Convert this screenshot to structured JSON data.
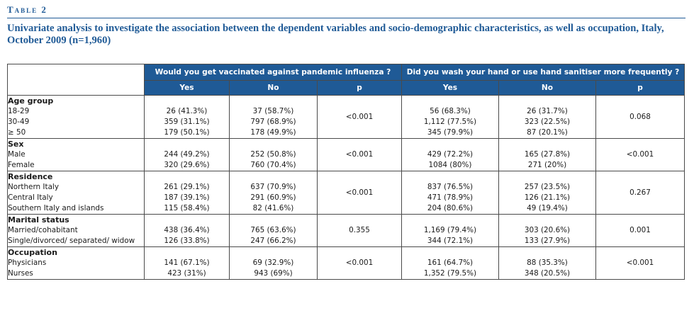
{
  "table_label": "Table 2",
  "caption": "Univariate analysis to investigate the association between the dependent variables and socio-demographic characteristics, as well as occupation, Italy, October 2009 (n=1,960)",
  "header": {
    "group1": "Would you get vaccinated against pandemic influenza ?",
    "group2": "Did you wash your hand or use hand sanitiser more frequently ?",
    "yes": "Yes",
    "no": "No",
    "p": "p"
  },
  "sections": [
    {
      "title": "Age group",
      "rows": [
        {
          "label": "18-29",
          "v_yes": "26 (41.3%)",
          "v_no": "37 (58.7%)",
          "w_yes": "56 (68.3%)",
          "w_no": "26 (31.7%)"
        },
        {
          "label": "30-49",
          "v_yes": "359 (31.1%)",
          "v_no": "797 (68.9%)",
          "w_yes": "1,112 (77.5%)",
          "w_no": "323 (22.5%)"
        },
        {
          "label": "≥ 50",
          "v_yes": "179 (50.1%)",
          "v_no": "178 (49.9%)",
          "w_yes": "345 (79.9%)",
          "w_no": "87 (20.1%)"
        }
      ],
      "p1": "<0.001",
      "p2": "0.068"
    },
    {
      "title": "Sex",
      "rows": [
        {
          "label": "Male",
          "v_yes": "244 (49.2%)",
          "v_no": "252 (50.8%)",
          "w_yes": "429 (72.2%)",
          "w_no": "165 (27.8%)"
        },
        {
          "label": "Female",
          "v_yes": "320 (29.6%)",
          "v_no": "760 (70.4%)",
          "w_yes": "1084 (80%)",
          "w_no": "271 (20%)"
        }
      ],
      "p1": "<0.001",
      "p2": "<0.001"
    },
    {
      "title": "Residence",
      "rows": [
        {
          "label": "Northern Italy",
          "v_yes": "261 (29.1%)",
          "v_no": "637 (70.9%)",
          "w_yes": "837 (76.5%)",
          "w_no": "257 (23.5%)"
        },
        {
          "label": "Central Italy",
          "v_yes": "187 (39.1%)",
          "v_no": "291 (60.9%)",
          "w_yes": "471 (78.9%)",
          "w_no": "126 (21.1%)"
        },
        {
          "label": "Southern Italy and islands",
          "v_yes": "115 (58.4%)",
          "v_no": "82 (41.6%)",
          "w_yes": "204 (80.6%)",
          "w_no": "49 (19.4%)"
        }
      ],
      "p1": "<0.001",
      "p2": "0.267"
    },
    {
      "title": "Marital status",
      "rows": [
        {
          "label": "Married/cohabitant",
          "v_yes": "438 (36.4%)",
          "v_no": "765 (63.6%)",
          "w_yes": "1,169 (79.4%)",
          "w_no": "303 (20.6%)"
        },
        {
          "label": "Single/divorced/ separated/ widow",
          "v_yes": "126 (33.8%)",
          "v_no": "247 (66.2%)",
          "w_yes": "344 (72.1%)",
          "w_no": "133 (27.9%)"
        }
      ],
      "p1": "0.355",
      "p2": "0.001"
    },
    {
      "title": "Occupation",
      "rows": [
        {
          "label": "Physicians",
          "v_yes": "141 (67.1%)",
          "v_no": "69 (32.9%)",
          "w_yes": "161 (64.7%)",
          "w_no": "88 (35.3%)"
        },
        {
          "label": "Nurses",
          "v_yes": "423 (31%)",
          "v_no": "943 (69%)",
          "w_yes": "1,352 (79.5%)",
          "w_no": "348 (20.5%)"
        }
      ],
      "p1": "<0.001",
      "p2": "<0.001"
    }
  ]
}
